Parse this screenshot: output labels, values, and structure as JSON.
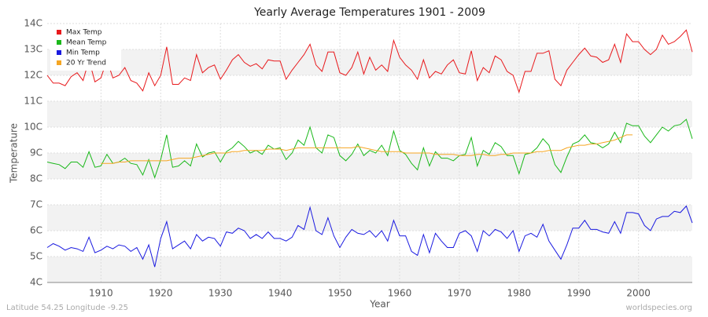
{
  "chart_data": {
    "type": "line",
    "title": "Yearly Average Temperatures 1901 - 2009",
    "x_label": "Year",
    "y_label": "Temperature",
    "footer_left": "Latitude 54.25 Longitude -9.25",
    "footer_right": "worldspecies.org",
    "legend": "top-left",
    "grid": true,
    "xlim": [
      1901,
      2009
    ],
    "xticks": [
      1910,
      1920,
      1930,
      1940,
      1950,
      1960,
      1970,
      1980,
      1990,
      2000
    ],
    "ylim": [
      4,
      14
    ],
    "yticks": [
      {
        "value": 4,
        "label": "4C"
      },
      {
        "value": 5,
        "label": "5C"
      },
      {
        "value": 6,
        "label": "6C"
      },
      {
        "value": 7,
        "label": "7C"
      },
      {
        "value": 8,
        "label": "8C"
      },
      {
        "value": 9,
        "label": "9C"
      },
      {
        "value": 10,
        "label": "10C"
      },
      {
        "value": 11,
        "label": "11C"
      },
      {
        "value": 12,
        "label": "12C"
      },
      {
        "value": 13,
        "label": "13C"
      },
      {
        "value": 14,
        "label": "14C"
      }
    ],
    "x": [
      1901,
      1902,
      1903,
      1904,
      1905,
      1906,
      1907,
      1908,
      1909,
      1910,
      1911,
      1912,
      1913,
      1914,
      1915,
      1916,
      1917,
      1918,
      1919,
      1920,
      1921,
      1922,
      1923,
      1924,
      1925,
      1926,
      1927,
      1928,
      1929,
      1930,
      1931,
      1932,
      1933,
      1934,
      1935,
      1936,
      1937,
      1938,
      1939,
      1940,
      1941,
      1942,
      1943,
      1944,
      1945,
      1946,
      1947,
      1948,
      1949,
      1950,
      1951,
      1952,
      1953,
      1954,
      1955,
      1956,
      1957,
      1958,
      1959,
      1960,
      1961,
      1962,
      1963,
      1964,
      1965,
      1966,
      1967,
      1968,
      1969,
      1970,
      1971,
      1972,
      1973,
      1974,
      1975,
      1976,
      1977,
      1978,
      1979,
      1980,
      1981,
      1982,
      1983,
      1984,
      1985,
      1986,
      1987,
      1988,
      1989,
      1990,
      1991,
      1992,
      1993,
      1994,
      1995,
      1996,
      1997,
      1998,
      1999,
      2000,
      2001,
      2002,
      2003,
      2004,
      2005,
      2006,
      2007,
      2008,
      2009
    ],
    "series": [
      {
        "name": "Max Temp",
        "color": "#e8191c",
        "values": [
          12.0,
          11.7,
          11.7,
          11.6,
          11.95,
          12.1,
          11.8,
          12.6,
          11.75,
          11.9,
          12.6,
          11.9,
          12.0,
          12.3,
          11.8,
          11.7,
          11.4,
          12.1,
          11.6,
          12.0,
          13.1,
          11.65,
          11.65,
          11.9,
          11.8,
          12.8,
          12.1,
          12.3,
          12.4,
          11.85,
          12.2,
          12.6,
          12.8,
          12.5,
          12.35,
          12.45,
          12.25,
          12.6,
          12.55,
          12.55,
          11.85,
          12.2,
          12.5,
          12.8,
          13.2,
          12.4,
          12.15,
          12.9,
          12.9,
          12.1,
          12.0,
          12.3,
          12.9,
          12.05,
          12.7,
          12.2,
          12.4,
          12.15,
          13.35,
          12.7,
          12.4,
          12.2,
          11.85,
          12.6,
          11.9,
          12.15,
          12.05,
          12.4,
          12.6,
          12.1,
          12.05,
          12.95,
          11.8,
          12.3,
          12.1,
          12.75,
          12.6,
          12.15,
          12.0,
          11.35,
          12.15,
          12.15,
          12.85,
          12.85,
          12.95,
          11.85,
          11.6,
          12.2,
          12.5,
          12.8,
          13.05,
          12.75,
          12.7,
          12.5,
          12.6,
          13.2,
          12.5,
          13.6,
          13.3,
          13.3,
          13.0,
          12.8,
          13.0,
          13.55,
          13.2,
          13.3,
          13.5,
          13.75,
          12.9
        ]
      },
      {
        "name": "Mean Temp",
        "color": "#1ab81a",
        "values": [
          8.65,
          8.6,
          8.55,
          8.4,
          8.65,
          8.65,
          8.45,
          9.05,
          8.45,
          8.5,
          8.95,
          8.6,
          8.65,
          8.8,
          8.6,
          8.55,
          8.15,
          8.75,
          8.05,
          8.75,
          9.7,
          8.45,
          8.5,
          8.7,
          8.5,
          9.35,
          8.85,
          9.0,
          9.05,
          8.65,
          9.05,
          9.2,
          9.45,
          9.25,
          9.0,
          9.1,
          8.95,
          9.3,
          9.15,
          9.2,
          8.75,
          9.0,
          9.5,
          9.3,
          10.0,
          9.2,
          9.0,
          9.7,
          9.6,
          8.9,
          8.7,
          8.95,
          9.35,
          8.9,
          9.1,
          9.0,
          9.3,
          8.9,
          9.85,
          9.1,
          8.95,
          8.6,
          8.35,
          9.2,
          8.5,
          9.05,
          8.8,
          8.8,
          8.7,
          8.9,
          8.95,
          9.6,
          8.5,
          9.1,
          8.95,
          9.4,
          9.25,
          8.9,
          8.9,
          8.2,
          8.95,
          9.0,
          9.2,
          9.55,
          9.3,
          8.55,
          8.25,
          8.85,
          9.35,
          9.45,
          9.7,
          9.4,
          9.35,
          9.2,
          9.35,
          9.8,
          9.4,
          10.15,
          10.05,
          10.05,
          9.65,
          9.4,
          9.7,
          10.0,
          9.85,
          10.05,
          10.1,
          10.3,
          9.55
        ]
      },
      {
        "name": "Min Temp",
        "color": "#1a1ae0",
        "values": [
          5.35,
          5.5,
          5.4,
          5.25,
          5.35,
          5.3,
          5.2,
          5.75,
          5.15,
          5.25,
          5.4,
          5.3,
          5.45,
          5.4,
          5.2,
          5.35,
          4.9,
          5.45,
          4.6,
          5.7,
          6.35,
          5.3,
          5.45,
          5.6,
          5.3,
          5.85,
          5.6,
          5.75,
          5.7,
          5.4,
          5.95,
          5.9,
          6.1,
          6.0,
          5.7,
          5.85,
          5.7,
          5.95,
          5.7,
          5.7,
          5.6,
          5.75,
          6.2,
          6.05,
          6.9,
          6.0,
          5.85,
          6.5,
          5.8,
          5.35,
          5.75,
          6.05,
          5.9,
          5.85,
          6.0,
          5.75,
          6.0,
          5.6,
          6.4,
          5.8,
          5.8,
          5.2,
          5.05,
          5.85,
          5.15,
          5.9,
          5.6,
          5.35,
          5.35,
          5.9,
          6.0,
          5.8,
          5.2,
          6.0,
          5.8,
          6.05,
          5.95,
          5.7,
          6.0,
          5.2,
          5.8,
          5.9,
          5.75,
          6.25,
          5.6,
          5.25,
          4.9,
          5.45,
          6.1,
          6.1,
          6.4,
          6.05,
          6.05,
          5.95,
          5.9,
          6.35,
          5.9,
          6.7,
          6.7,
          6.65,
          6.2,
          6.0,
          6.45,
          6.55,
          6.55,
          6.75,
          6.7,
          6.95,
          6.3
        ]
      },
      {
        "name": "20 Yr Trend",
        "color": "#f5a623",
        "values": [
          null,
          null,
          null,
          null,
          null,
          null,
          null,
          null,
          null,
          8.6,
          8.6,
          8.6,
          8.65,
          8.65,
          8.7,
          8.7,
          8.7,
          8.7,
          8.7,
          8.7,
          8.7,
          8.75,
          8.8,
          8.8,
          8.8,
          8.85,
          8.9,
          8.95,
          9.0,
          9.0,
          9.0,
          9.05,
          9.05,
          9.1,
          9.1,
          9.1,
          9.1,
          9.15,
          9.15,
          9.15,
          9.1,
          9.15,
          9.2,
          9.2,
          9.2,
          9.2,
          9.2,
          9.2,
          9.2,
          9.2,
          9.2,
          9.2,
          9.25,
          9.2,
          9.15,
          9.1,
          9.05,
          9.05,
          9.05,
          9.05,
          9.0,
          9.0,
          9.0,
          9.0,
          9.0,
          8.95,
          8.95,
          8.95,
          8.95,
          8.9,
          8.9,
          8.9,
          8.95,
          8.95,
          8.9,
          8.9,
          8.95,
          8.95,
          9.0,
          9.0,
          9.0,
          9.0,
          9.05,
          9.05,
          9.1,
          9.1,
          9.1,
          9.2,
          9.25,
          9.3,
          9.3,
          9.35,
          9.35,
          9.4,
          9.45,
          9.5,
          9.6,
          9.7,
          9.7,
          null,
          null,
          null,
          null,
          null,
          null,
          null,
          null,
          null,
          null
        ]
      }
    ]
  }
}
